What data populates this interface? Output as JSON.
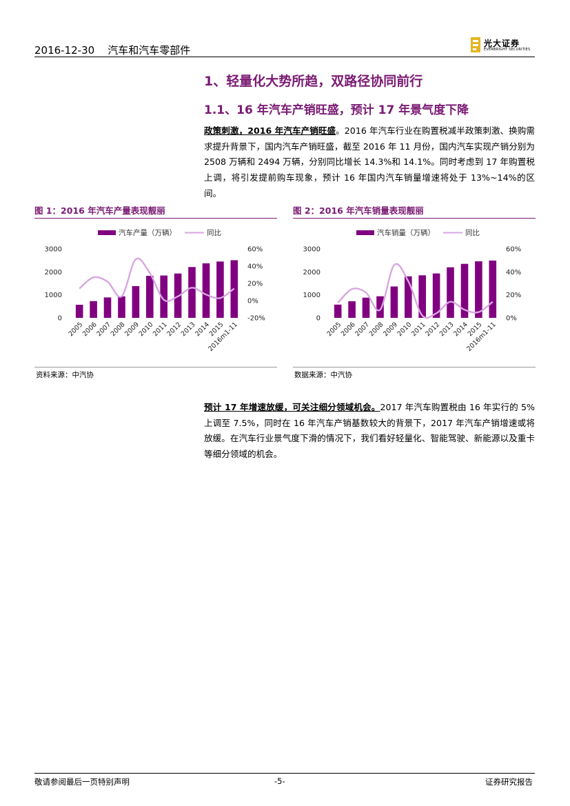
{
  "header": {
    "date": "2016-12-30",
    "sector": "汽车和汽车零部件",
    "logo_cn": "光大证券",
    "logo_en": "EVERBRIGHT SECURITIES"
  },
  "section_title": "1、轻量化大势所趋，双路径协同前行",
  "subsection_title": "1.1、16 年汽车产销旺盛，预计 17 年景气度下降",
  "para1": {
    "lead": "政策刺激，2016 年汽车产销旺盛",
    "body": "。2016 年汽车行业在购置税减半政策刺激、换购需求提升背景下，国内汽车产销旺盛，截至 2016 年 11 月份，国内汽车实现产销分别为 2508 万辆和 2494 万辆，分别同比增长 14.3%和 14.1%。同时考虑到 17 年购置税上调，将引发提前购车现象，预计 16 年国内汽车销量增速将处于 13%~14%的区间。"
  },
  "figure1": {
    "title": "图 1：2016 年汽车产量表现靓丽",
    "source": "资料来源：中汽协"
  },
  "figure2": {
    "title": "图 2：2016 年汽车销量表现靓丽",
    "source": "数据来源：中汽协"
  },
  "para2": {
    "lead": "预计 17 年增速放缓，可关注细分领域机会。",
    "body": "2017 年汽车购置税由 16 年实行的 5%上调至 7.5%，同时在 16 年汽车产销基数较大的背景下，2017 年汽车产销增速或将放缓。在汽车行业景气度下滑的情况下，我们看好轻量化、智能驾驶、新能源以及重卡等细分领域的机会。"
  },
  "footer": {
    "disclaimer": "敬请参阅最后一页特别声明",
    "page": "-5-",
    "report_type": "证券研究报告"
  },
  "colors": {
    "bar": "#800080",
    "line": "#d8a6e0",
    "accent": "#7a1a73"
  },
  "chart_data": [
    {
      "type": "bar",
      "categories": [
        "2005",
        "2006",
        "2007",
        "2008",
        "2009",
        "2010",
        "2011",
        "2012",
        "2013",
        "2014",
        "2015",
        "2016m1-11"
      ],
      "series": [
        {
          "name": "汽车产量（万辆）",
          "type": "bar",
          "axis": "left",
          "values": [
            571,
            728,
            888,
            935,
            1379,
            1826,
            1842,
            1928,
            2212,
            2373,
            2450,
            2508
          ]
        },
        {
          "name": "同比",
          "type": "line",
          "axis": "right",
          "values": [
            14,
            27,
            22,
            5,
            48,
            32,
            1,
            5,
            15,
            7,
            3,
            14
          ]
        }
      ],
      "ylim_left": [
        0,
        3000
      ],
      "yticks_left": [
        "0",
        "1000",
        "2000",
        "3000"
      ],
      "ylim_right": [
        -20,
        60
      ],
      "yticks_right": [
        "-20%",
        "0%",
        "20%",
        "40%",
        "60%"
      ],
      "legend": "top"
    },
    {
      "type": "bar",
      "categories": [
        "2005",
        "2006",
        "2007",
        "2008",
        "2009",
        "2010",
        "2011",
        "2012",
        "2013",
        "2014",
        "2015",
        "2016m1-11"
      ],
      "series": [
        {
          "name": "汽车销量（万辆）",
          "type": "bar",
          "axis": "left",
          "values": [
            576,
            722,
            879,
            938,
            1364,
            1806,
            1851,
            1931,
            2198,
            2349,
            2460,
            2494
          ]
        },
        {
          "name": "同比",
          "type": "line",
          "axis": "right",
          "values": [
            13,
            25,
            22,
            7,
            46,
            32,
            2,
            4,
            14,
            7,
            5,
            14
          ]
        }
      ],
      "ylim_left": [
        0,
        3000
      ],
      "yticks_left": [
        "0",
        "1000",
        "2000",
        "3000"
      ],
      "ylim_right": [
        0,
        60
      ],
      "yticks_right": [
        "0%",
        "20%",
        "40%",
        "60%"
      ],
      "legend": "top"
    }
  ]
}
